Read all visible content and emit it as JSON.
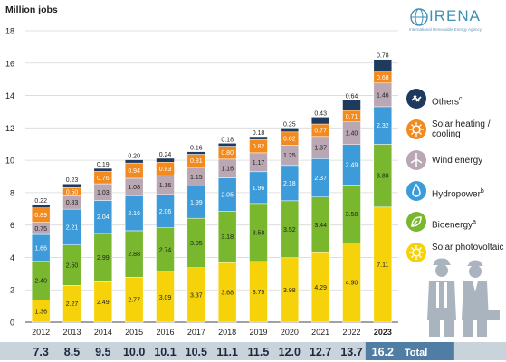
{
  "logo": {
    "name": "IRENA",
    "subtitle": "International Renewable Energy Agency"
  },
  "colors": {
    "others": "#1e3a5c",
    "solar_heating": "#f28a1e",
    "wind": "#b9a7b3",
    "hydro": "#3d9bd9",
    "bioenergy": "#78b72e",
    "solar_pv": "#f5d20a",
    "total_band": "#c8d3dc",
    "total_band_dark": "#4f7da4"
  },
  "chart_data": {
    "type": "bar",
    "stacked": true,
    "ylabel": "Million jobs",
    "ylim": [
      0,
      18
    ],
    "yticks": [
      0,
      2,
      4,
      6,
      8,
      10,
      12,
      14,
      16,
      18
    ],
    "grid": true,
    "legend_position": "right",
    "categories": [
      "2012",
      "2013",
      "2014",
      "2015",
      "2016",
      "2017",
      "2018",
      "2019",
      "2020",
      "2021",
      "2022",
      "2023"
    ],
    "series": [
      {
        "key": "solar_pv",
        "name": "Solar photovoltaic",
        "values": [
          1.36,
          2.27,
          2.49,
          2.77,
          3.09,
          3.37,
          3.68,
          3.75,
          3.98,
          4.29,
          4.9,
          7.11
        ]
      },
      {
        "key": "bioenergy",
        "name": "Bioenergy",
        "sup": "a",
        "values": [
          2.4,
          2.5,
          2.99,
          2.88,
          2.74,
          3.05,
          3.18,
          3.58,
          3.52,
          3.44,
          3.58,
          3.88
        ]
      },
      {
        "key": "hydro",
        "name": "Hydropower",
        "sup": "b",
        "values": [
          1.66,
          2.21,
          2.04,
          2.16,
          2.06,
          1.99,
          2.05,
          1.96,
          2.18,
          2.37,
          2.49,
          2.32
        ]
      },
      {
        "key": "wind",
        "name": "Wind energy",
        "values": [
          0.75,
          0.83,
          1.03,
          1.08,
          1.16,
          1.15,
          1.16,
          1.17,
          1.25,
          1.37,
          1.4,
          1.46
        ]
      },
      {
        "key": "solar_heating",
        "name": "Solar heating / cooling",
        "values": [
          0.89,
          0.5,
          0.76,
          0.94,
          0.83,
          0.81,
          0.8,
          0.82,
          0.82,
          0.77,
          0.71,
          0.68
        ]
      },
      {
        "key": "others",
        "name": "Others",
        "sup": "c",
        "values": [
          0.22,
          0.23,
          0.19,
          0.2,
          0.24,
          0.16,
          0.18,
          0.18,
          0.25,
          0.43,
          0.64,
          0.78
        ]
      }
    ],
    "totals": [
      "7.3",
      "8.5",
      "9.5",
      "10.0",
      "10.1",
      "10.5",
      "11.1",
      "11.5",
      "12.0",
      "12.7",
      "13.7",
      "16.2"
    ],
    "totals_label": "Total",
    "highlight_category": "2023"
  }
}
